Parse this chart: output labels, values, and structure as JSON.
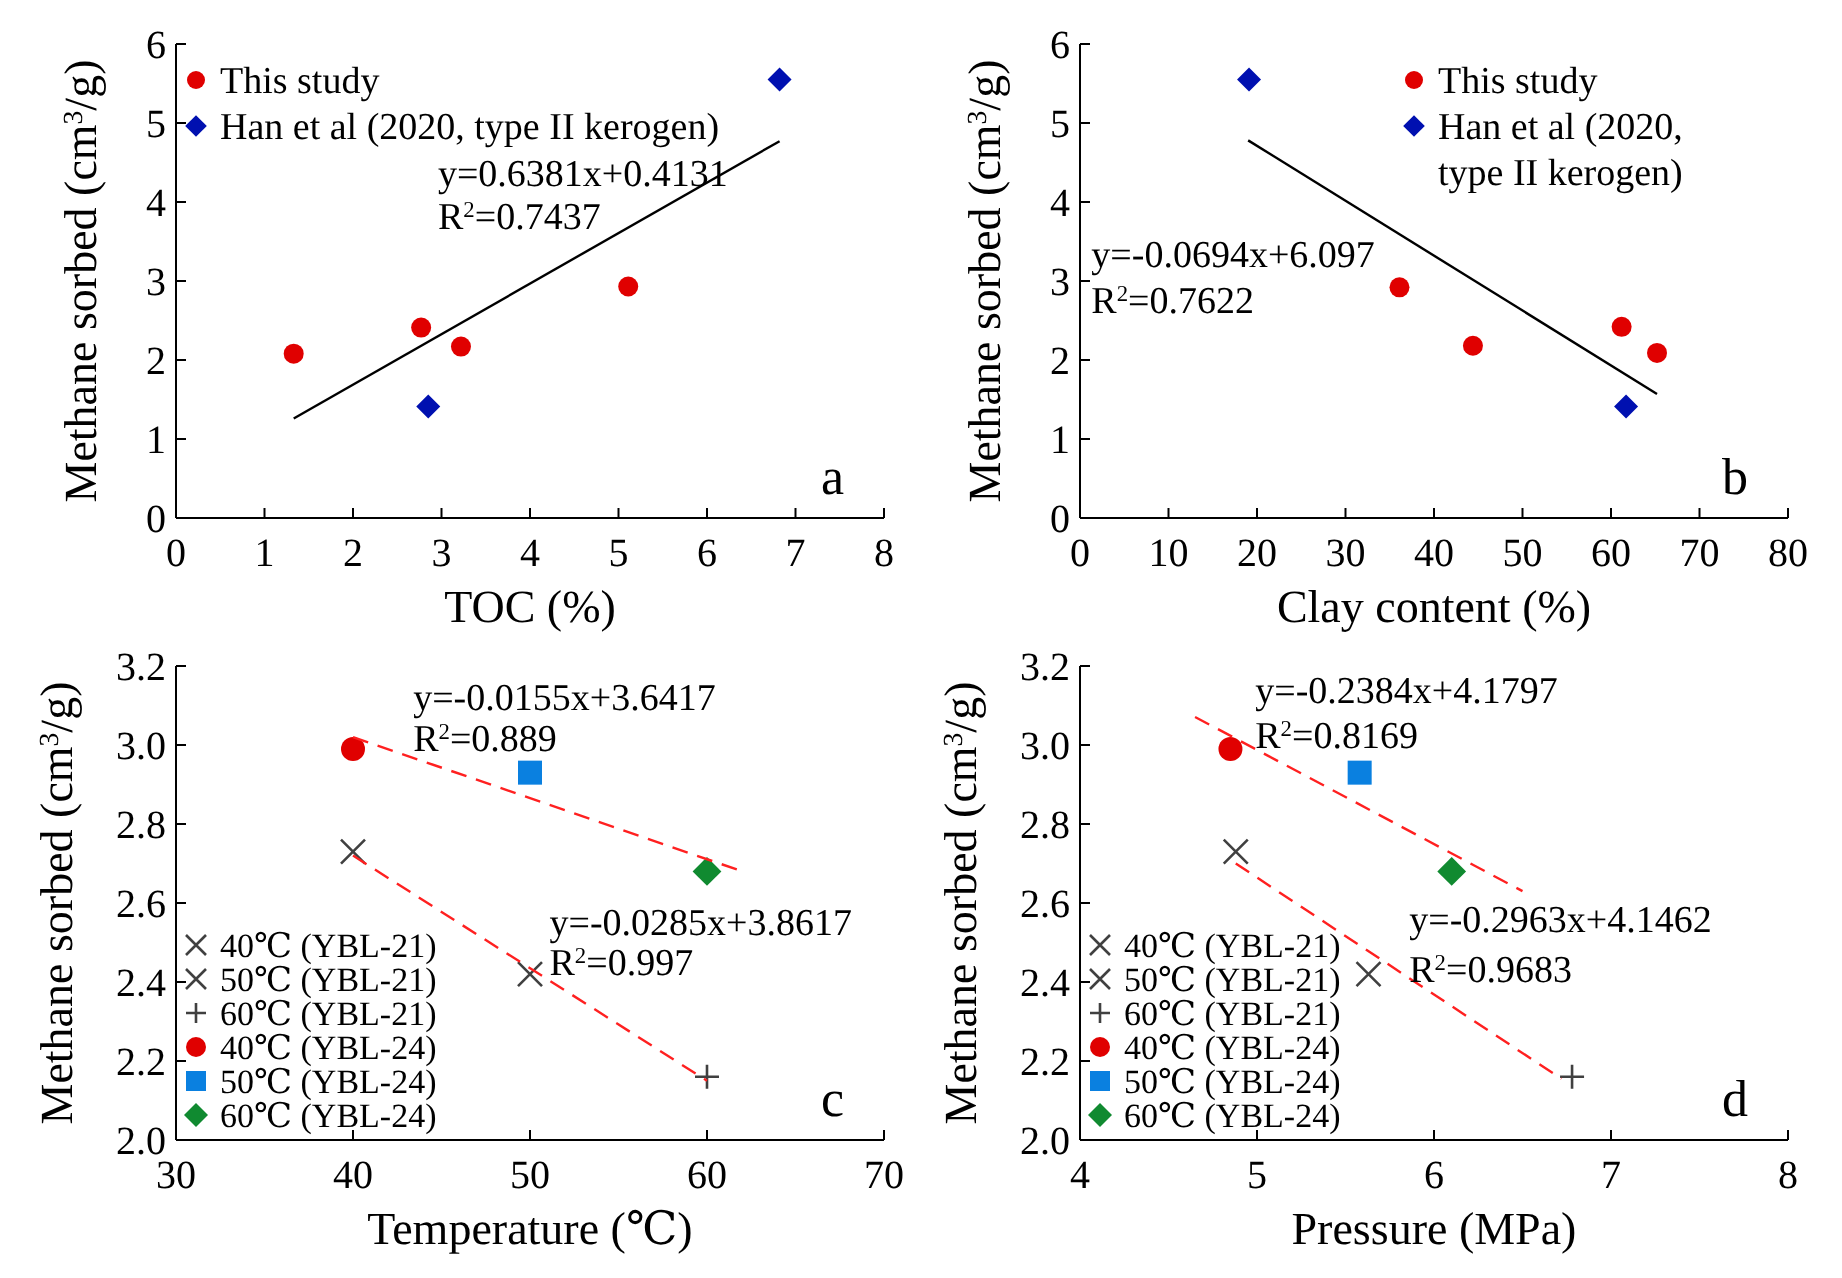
{
  "chart_data": [
    {
      "type": "scatter",
      "xlabel": "TOC (%)",
      "ylabel": "Methane sorbed  (cm$^{3}$/g)",
      "xlim": [
        0,
        8
      ],
      "ylim": [
        0,
        6
      ],
      "xticks": [
        0,
        1,
        2,
        3,
        4,
        5,
        6,
        7,
        8
      ],
      "yticks": [
        0,
        1,
        2,
        3,
        4,
        5,
        6
      ],
      "legend": "top left",
      "series": [
        {
          "name": "This study",
          "color": "#e00000",
          "marker": "circle",
          "x": [
            1.33,
            2.77,
            3.22,
            5.11
          ],
          "values": [
            2.08,
            2.41,
            2.17,
            2.93
          ]
        },
        {
          "name": "Han et al (2020, type II kerogen)",
          "color": "#0010b0",
          "marker": "diamond",
          "x": [
            2.85,
            6.82
          ],
          "values": [
            1.41,
            5.55
          ]
        },
        {
          "type": "line",
          "color": "#000000",
          "line_style": "solid",
          "x": [
            1.33,
            6.82
          ],
          "values": [
            1.26,
            4.77
          ]
        }
      ],
      "annotations": [
        "y=0.6381x+0.4131",
        "R$^{2}$=0.7437",
        "a"
      ]
    },
    {
      "type": "scatter",
      "xlabel": "Clay content (%)",
      "ylabel": "Methane sorbed  (cm$^{3}$/g)",
      "xlim": [
        0,
        80
      ],
      "ylim": [
        0,
        6
      ],
      "xticks": [
        0,
        10,
        20,
        30,
        40,
        50,
        60,
        70,
        80
      ],
      "yticks": [
        0,
        1,
        2,
        3,
        4,
        5,
        6
      ],
      "legend": "top right",
      "series": [
        {
          "name": "This study",
          "color": "#e00000",
          "marker": "circle",
          "x": [
            36.1,
            44.4,
            61.2,
            65.2
          ],
          "values": [
            2.92,
            2.18,
            2.42,
            2.09
          ]
        },
        {
          "name": "Han et al (2020, type II kerogen)",
          "color": "#0010b0",
          "marker": "diamond",
          "x": [
            19.1,
            61.7
          ],
          "values": [
            5.55,
            1.41
          ]
        },
        {
          "type": "line",
          "color": "#000000",
          "line_style": "solid",
          "x": [
            19,
            65.2
          ],
          "values": [
            4.78,
            1.57
          ]
        }
      ],
      "annotations": [
        "y=-0.0694x+6.097",
        "R$^{2}$=0.7622",
        "b"
      ]
    },
    {
      "type": "scatter",
      "xlabel": "Temperature (℃)",
      "ylabel": "Methane sorbed  (cm$^{3}$/g)",
      "xlim": [
        30,
        70
      ],
      "ylim": [
        2,
        3.2
      ],
      "xticks": [
        30,
        40,
        50,
        60,
        70
      ],
      "yticks": [
        {
          "value": 2,
          "label": "2.0"
        },
        {
          "value": 2.2,
          "label": "2.2"
        },
        {
          "value": 2.4,
          "label": "2.4"
        },
        {
          "value": 2.6,
          "label": "2.6"
        },
        {
          "value": 2.8,
          "label": "2.8"
        },
        {
          "value": 3,
          "label": "3.0"
        },
        {
          "value": 3.2,
          "label": "3.2"
        }
      ],
      "legend": "bottom left",
      "series": [
        {
          "name": "40℃ (YBL-21)",
          "color": "#404040",
          "marker": "cross",
          "x": [
            40
          ],
          "values": [
            2.73
          ]
        },
        {
          "name": "50℃ (YBL-21)",
          "color": "#404040",
          "marker": "cross",
          "x": [
            50
          ],
          "values": [
            2.42
          ]
        },
        {
          "name": "60℃ (YBL-21)",
          "color": "#404040",
          "marker": "plus",
          "x": [
            60
          ],
          "values": [
            2.16
          ]
        },
        {
          "name": "40℃ (YBL-24)",
          "color": "#e00000",
          "marker": "circle",
          "x": [
            40
          ],
          "values": [
            2.99
          ]
        },
        {
          "name": "50℃ (YBL-24)",
          "color": "#0a80e0",
          "marker": "square",
          "x": [
            50
          ],
          "values": [
            2.93
          ]
        },
        {
          "name": "60℃ (YBL-24)",
          "color": "#108a30",
          "marker": "diamond",
          "x": [
            60
          ],
          "values": [
            2.68
          ]
        },
        {
          "type": "line",
          "color": "#ff2020",
          "line_style": "dashed",
          "x": [
            40,
            62
          ],
          "values": [
            3.02,
            2.68
          ]
        },
        {
          "type": "line",
          "color": "#ff2020",
          "line_style": "dashed",
          "x": [
            40,
            60
          ],
          "values": [
            2.72,
            2.15
          ]
        }
      ],
      "annotations": [
        "y=-0.0155x+3.6417",
        "R$^{2}$=0.889",
        "y=-0.0285x+3.8617",
        "R$^{2}$=0.997",
        "c"
      ]
    },
    {
      "type": "scatter",
      "xlabel": "Pressure (MPa)",
      "ylabel": "Methane sorbed  (cm$^{3}$/g)",
      "xlim": [
        4,
        8
      ],
      "ylim": [
        2,
        3.2
      ],
      "xticks": [
        4,
        5,
        6,
        7,
        8
      ],
      "yticks": [
        {
          "value": 2,
          "label": "2.0"
        },
        {
          "value": 2.2,
          "label": "2.2"
        },
        {
          "value": 2.4,
          "label": "2.4"
        },
        {
          "value": 2.6,
          "label": "2.6"
        },
        {
          "value": 2.8,
          "label": "2.8"
        },
        {
          "value": 3,
          "label": "3.0"
        },
        {
          "value": 3.2,
          "label": "3.2"
        }
      ],
      "legend": "bottom left",
      "series": [
        {
          "name": "40℃ (YBL-21)",
          "color": "#404040",
          "marker": "cross",
          "x": [
            4.88
          ],
          "values": [
            2.73
          ]
        },
        {
          "name": "50℃ (YBL-21)",
          "color": "#404040",
          "marker": "cross",
          "x": [
            5.63
          ],
          "values": [
            2.42
          ]
        },
        {
          "name": "60℃ (YBL-21)",
          "color": "#404040",
          "marker": "plus",
          "x": [
            6.78
          ],
          "values": [
            2.16
          ]
        },
        {
          "name": "40℃ (YBL-24)",
          "color": "#e00000",
          "marker": "circle",
          "x": [
            4.85
          ],
          "values": [
            2.99
          ]
        },
        {
          "name": "50℃ (YBL-24)",
          "color": "#0a80e0",
          "marker": "square",
          "x": [
            5.58
          ],
          "values": [
            2.93
          ]
        },
        {
          "name": "60℃ (YBL-24)",
          "color": "#108a30",
          "marker": "diamond",
          "x": [
            6.1
          ],
          "values": [
            2.68
          ]
        },
        {
          "type": "line",
          "color": "#ff2020",
          "line_style": "dashed",
          "x": [
            4.65,
            6.5
          ],
          "values": [
            3.071,
            2.63
          ]
        },
        {
          "type": "line",
          "color": "#ff2020",
          "line_style": "dashed",
          "x": [
            4.88,
            6.72
          ],
          "values": [
            2.7,
            2.155
          ]
        }
      ],
      "annotations": [
        "y=-0.2384x+4.1797",
        "R$^{2}$=0.8169",
        "y=-0.2963x+4.1462",
        "R$^{2}$=0.9683",
        "d"
      ]
    }
  ]
}
